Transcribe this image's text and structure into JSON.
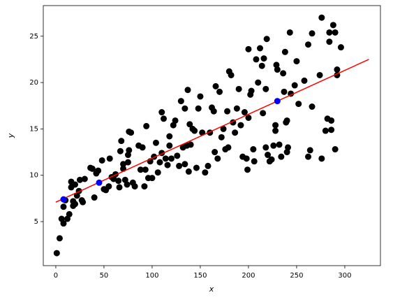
{
  "chart_data": {
    "type": "scatter",
    "xlabel": "x",
    "ylabel": "y",
    "xlim": [
      -13,
      337
    ],
    "ylim": [
      0.25,
      28.3
    ],
    "xticks": [
      0,
      50,
      100,
      150,
      200,
      250,
      300
    ],
    "yticks": [
      5,
      10,
      15,
      20,
      25
    ],
    "series": [
      {
        "type": "scatter",
        "color": "#000000",
        "x": [
          1,
          4,
          6,
          8,
          8,
          10,
          12,
          14,
          16,
          16,
          18,
          18,
          20,
          20,
          22,
          24,
          25,
          27,
          28,
          30,
          36,
          38,
          40,
          42,
          44,
          48,
          50,
          52,
          55,
          56,
          58,
          60,
          62,
          65,
          66,
          67,
          68,
          70,
          70,
          72,
          74,
          75,
          75,
          76,
          76,
          78,
          80,
          82,
          86,
          88,
          90,
          92,
          93,
          94,
          96,
          98,
          100,
          102,
          104,
          106,
          108,
          110,
          110,
          112,
          114,
          116,
          118,
          118,
          120,
          122,
          124,
          126,
          128,
          130,
          132,
          134,
          134,
          136,
          137,
          138,
          139,
          140,
          142,
          144,
          146,
          148,
          150,
          152,
          155,
          158,
          160,
          162,
          164,
          165,
          166,
          168,
          170,
          172,
          174,
          176,
          178,
          179,
          180,
          182,
          184,
          186,
          188,
          190,
          192,
          194,
          196,
          198,
          199,
          200,
          200,
          202,
          203,
          205,
          206,
          208,
          210,
          212,
          214,
          215,
          216,
          218,
          218,
          219,
          220,
          222,
          224,
          226,
          228,
          228,
          229,
          230,
          232,
          234,
          236,
          237,
          238,
          239,
          240,
          240,
          241,
          243,
          244,
          248,
          250,
          252,
          258,
          262,
          262,
          264,
          266,
          266,
          274,
          276,
          276,
          280,
          282,
          284,
          284,
          286,
          286,
          288,
          290,
          290,
          292,
          292,
          296
        ],
        "values": [
          1.6,
          3.2,
          5.3,
          4.8,
          6.6,
          7.3,
          5.3,
          5.8,
          9.3,
          8.7,
          6.7,
          7.2,
          6.9,
          9.0,
          7.8,
          8.3,
          9.5,
          7.3,
          7.1,
          9.6,
          10.8,
          10.7,
          7.6,
          10.2,
          10.5,
          11.6,
          8.5,
          8.4,
          8.8,
          11.8,
          9.8,
          9.6,
          10.1,
          9.4,
          8.7,
          12.6,
          13.7,
          11.2,
          10.7,
          9.5,
          9.0,
          12.2,
          11.4,
          14.7,
          12.7,
          14.6,
          9.2,
          8.8,
          13.2,
          10.6,
          13.0,
          8.8,
          10.6,
          15.3,
          9.7,
          11.5,
          9.7,
          12.0,
          13.5,
          10.3,
          11.4,
          12.4,
          16.8,
          16.1,
          11.8,
          11.1,
          14.2,
          13.2,
          11.8,
          15.4,
          15.9,
          12.1,
          11.0,
          18.0,
          13.0,
          17.2,
          11.2,
          13.2,
          19.2,
          10.4,
          15.5,
          13.3,
          15.0,
          14.8,
          10.8,
          17.2,
          18.5,
          14.6,
          10.3,
          11.0,
          14.6,
          17.3,
          16.9,
          12.5,
          19.6,
          11.8,
          19.0,
          14.1,
          15.0,
          12.8,
          16.9,
          13.0,
          21.2,
          20.8,
          15.7,
          14.6,
          17.2,
          19.3,
          15.4,
          12.0,
          16.8,
          11.8,
          10.6,
          23.6,
          16.2,
          18.7,
          19.1,
          12.8,
          11.5,
          22.5,
          20.0,
          23.7,
          21.8,
          16.7,
          22.6,
          13.0,
          19.3,
          24.7,
          12.2,
          11.5,
          11.7,
          13.2,
          15.4,
          14.8,
          21.9,
          21.4,
          13.3,
          12.0,
          21.0,
          19.0,
          23.3,
          15.7,
          15.9,
          12.5,
          13.0,
          25.4,
          18.8,
          19.7,
          22.3,
          17.7,
          20.2,
          24.1,
          12.0,
          12.7,
          17.4,
          25.3,
          20.8,
          27.0,
          11.8,
          14.8,
          16.1,
          24.4,
          25.4,
          15.9,
          14.9,
          26.2,
          25.4,
          12.8,
          21.4,
          20.8,
          23.8
        ]
      },
      {
        "type": "line",
        "color": "#ff0000",
        "x": [
          0,
          325
        ],
        "values": [
          7.1,
          22.5
        ]
      },
      {
        "type": "scatter",
        "color": "#0000ff",
        "x": [
          8,
          45,
          230
        ],
        "values": [
          7.4,
          9.2,
          18.0
        ]
      }
    ]
  }
}
